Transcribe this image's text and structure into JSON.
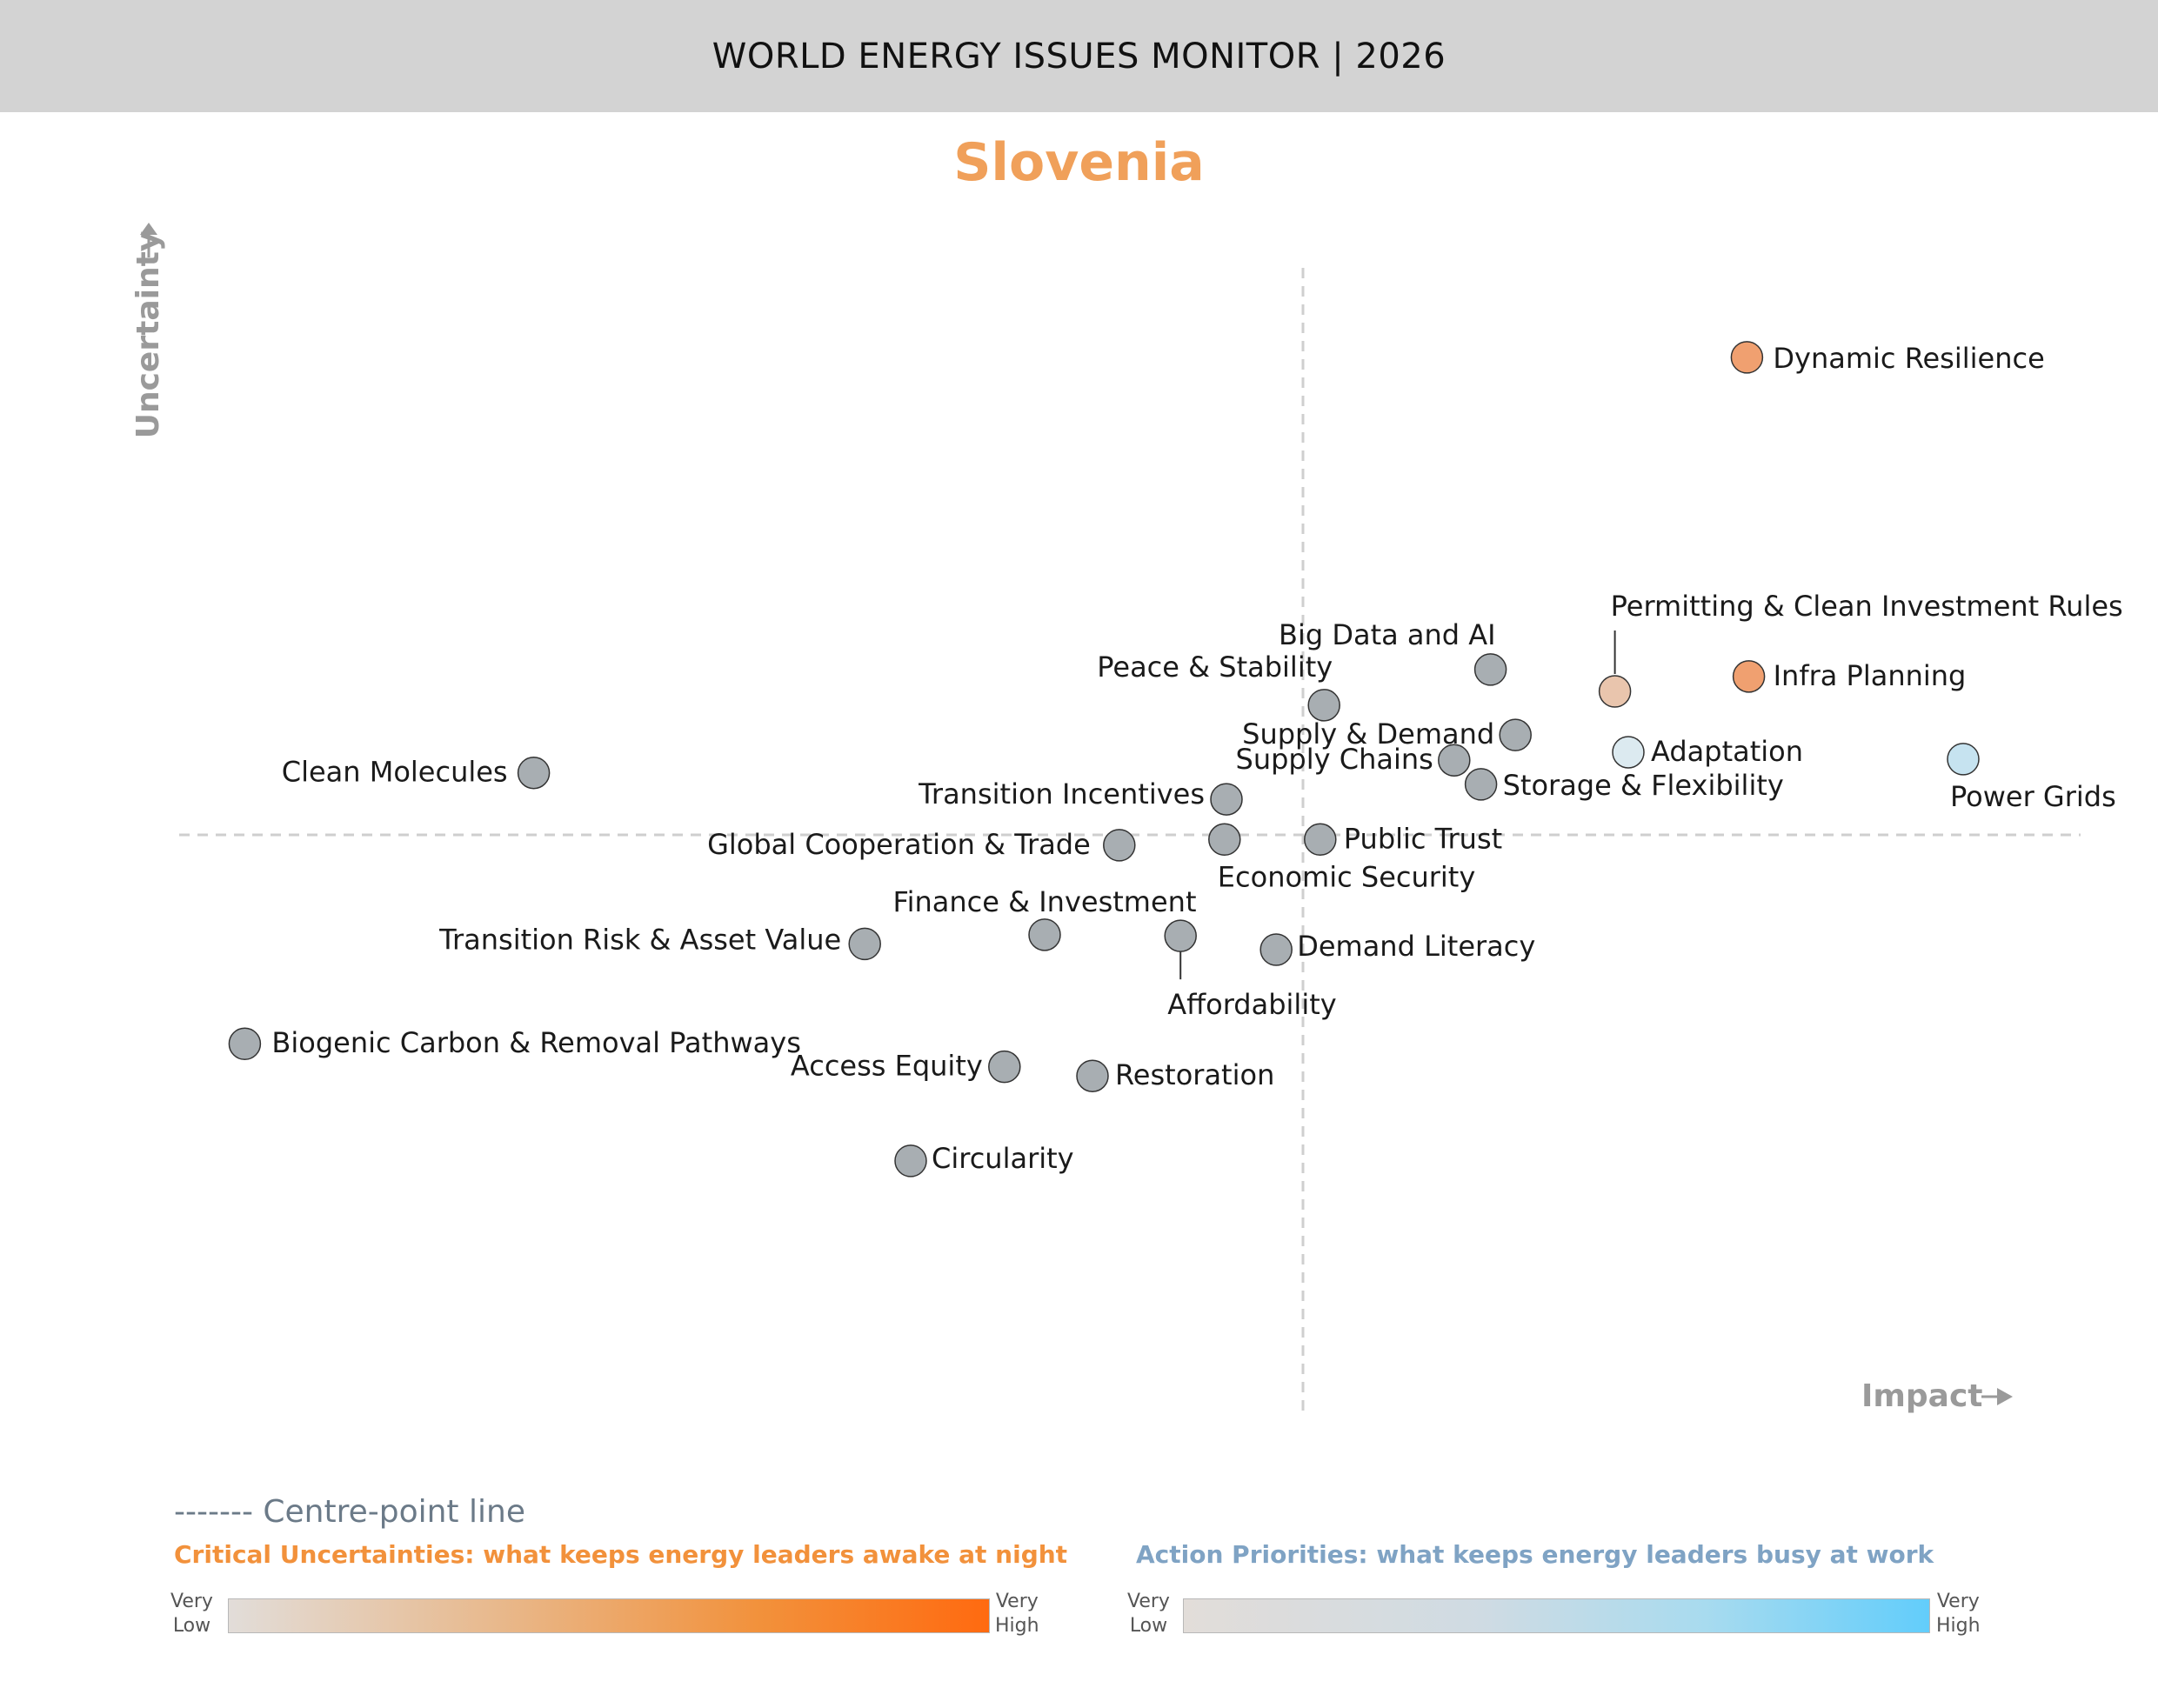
{
  "header": {
    "title": "WORLD ENERGY ISSUES MONITOR | 2026"
  },
  "country": "Slovenia",
  "chart_data": {
    "type": "scatter",
    "title": "Slovenia",
    "xlabel": "Impact",
    "ylabel": "Uncertainty",
    "xlim": [
      0,
      10
    ],
    "ylim": [
      0,
      10
    ],
    "grid": false,
    "centre_x": 5.9,
    "centre_y": 5.0,
    "colors": {
      "grey": "#a8aeb2",
      "orange_strong": "#f0a070",
      "orange_light": "#e9c5ad",
      "blue_light": "#c6e3f0",
      "blue_pale": "#dceaf0"
    },
    "points": [
      {
        "label": "Dynamic Resilience",
        "x": 8.22,
        "y": 9.16,
        "color": "orange_strong"
      },
      {
        "label": "Big Data and AI",
        "x": 6.88,
        "y": 6.44,
        "color": "grey"
      },
      {
        "label": "Permitting & Clean Investment Rules",
        "x": 7.53,
        "y": 6.25,
        "color": "orange_light"
      },
      {
        "label": "Infra Planning",
        "x": 8.23,
        "y": 6.38,
        "color": "orange_strong"
      },
      {
        "label": "Peace & Stability",
        "x": 6.01,
        "y": 6.13,
        "color": "grey"
      },
      {
        "label": "Supply & Demand",
        "x": 7.01,
        "y": 5.87,
        "color": "grey"
      },
      {
        "label": "Adaptation",
        "x": 7.6,
        "y": 5.72,
        "color": "blue_pale"
      },
      {
        "label": "Supply Chains",
        "x": 6.69,
        "y": 5.65,
        "color": "grey"
      },
      {
        "label": "Power Grids",
        "x": 9.35,
        "y": 5.66,
        "color": "blue_light"
      },
      {
        "label": "Storage & Flexibility",
        "x": 6.83,
        "y": 5.44,
        "color": "grey"
      },
      {
        "label": "Clean Molecules",
        "x": 1.88,
        "y": 5.54,
        "color": "grey"
      },
      {
        "label": "Transition Incentives",
        "x": 5.5,
        "y": 5.31,
        "color": "grey"
      },
      {
        "label": "Global Cooperation & Trade",
        "x": 4.94,
        "y": 4.91,
        "color": "grey"
      },
      {
        "label": "Economic Security",
        "x": 5.49,
        "y": 4.96,
        "color": "grey"
      },
      {
        "label": "Public Trust",
        "x": 5.99,
        "y": 4.96,
        "color": "grey"
      },
      {
        "label": "Finance & Investment",
        "x": 4.55,
        "y": 4.13,
        "color": "grey"
      },
      {
        "label": "Affordability",
        "x": 5.26,
        "y": 4.12,
        "color": "grey"
      },
      {
        "label": "Transition Risk & Asset Value",
        "x": 3.61,
        "y": 4.05,
        "color": "grey"
      },
      {
        "label": "Demand Literacy",
        "x": 5.76,
        "y": 4.0,
        "color": "grey"
      },
      {
        "label": "Biogenic Carbon & Removal Pathways",
        "x": 0.37,
        "y": 3.18,
        "color": "grey"
      },
      {
        "label": "Access Equity",
        "x": 4.34,
        "y": 2.98,
        "color": "grey"
      },
      {
        "label": "Restoration",
        "x": 4.8,
        "y": 2.9,
        "color": "grey"
      },
      {
        "label": "Circularity",
        "x": 3.85,
        "y": 2.16,
        "color": "grey"
      }
    ]
  },
  "legend": {
    "centre_line": "------- Centre-point line",
    "critical_uncertainties": "Critical Uncertainties: what keeps energy leaders awake at night",
    "action_priorities": "Action Priorities: what keeps energy leaders busy at work",
    "very": "Very",
    "low": "Low",
    "high": "High",
    "cu_colors": [
      "#e2ddd9",
      "#ff6a10"
    ],
    "ap_colors": [
      "#e2ddd9",
      "#62cdfb"
    ]
  }
}
